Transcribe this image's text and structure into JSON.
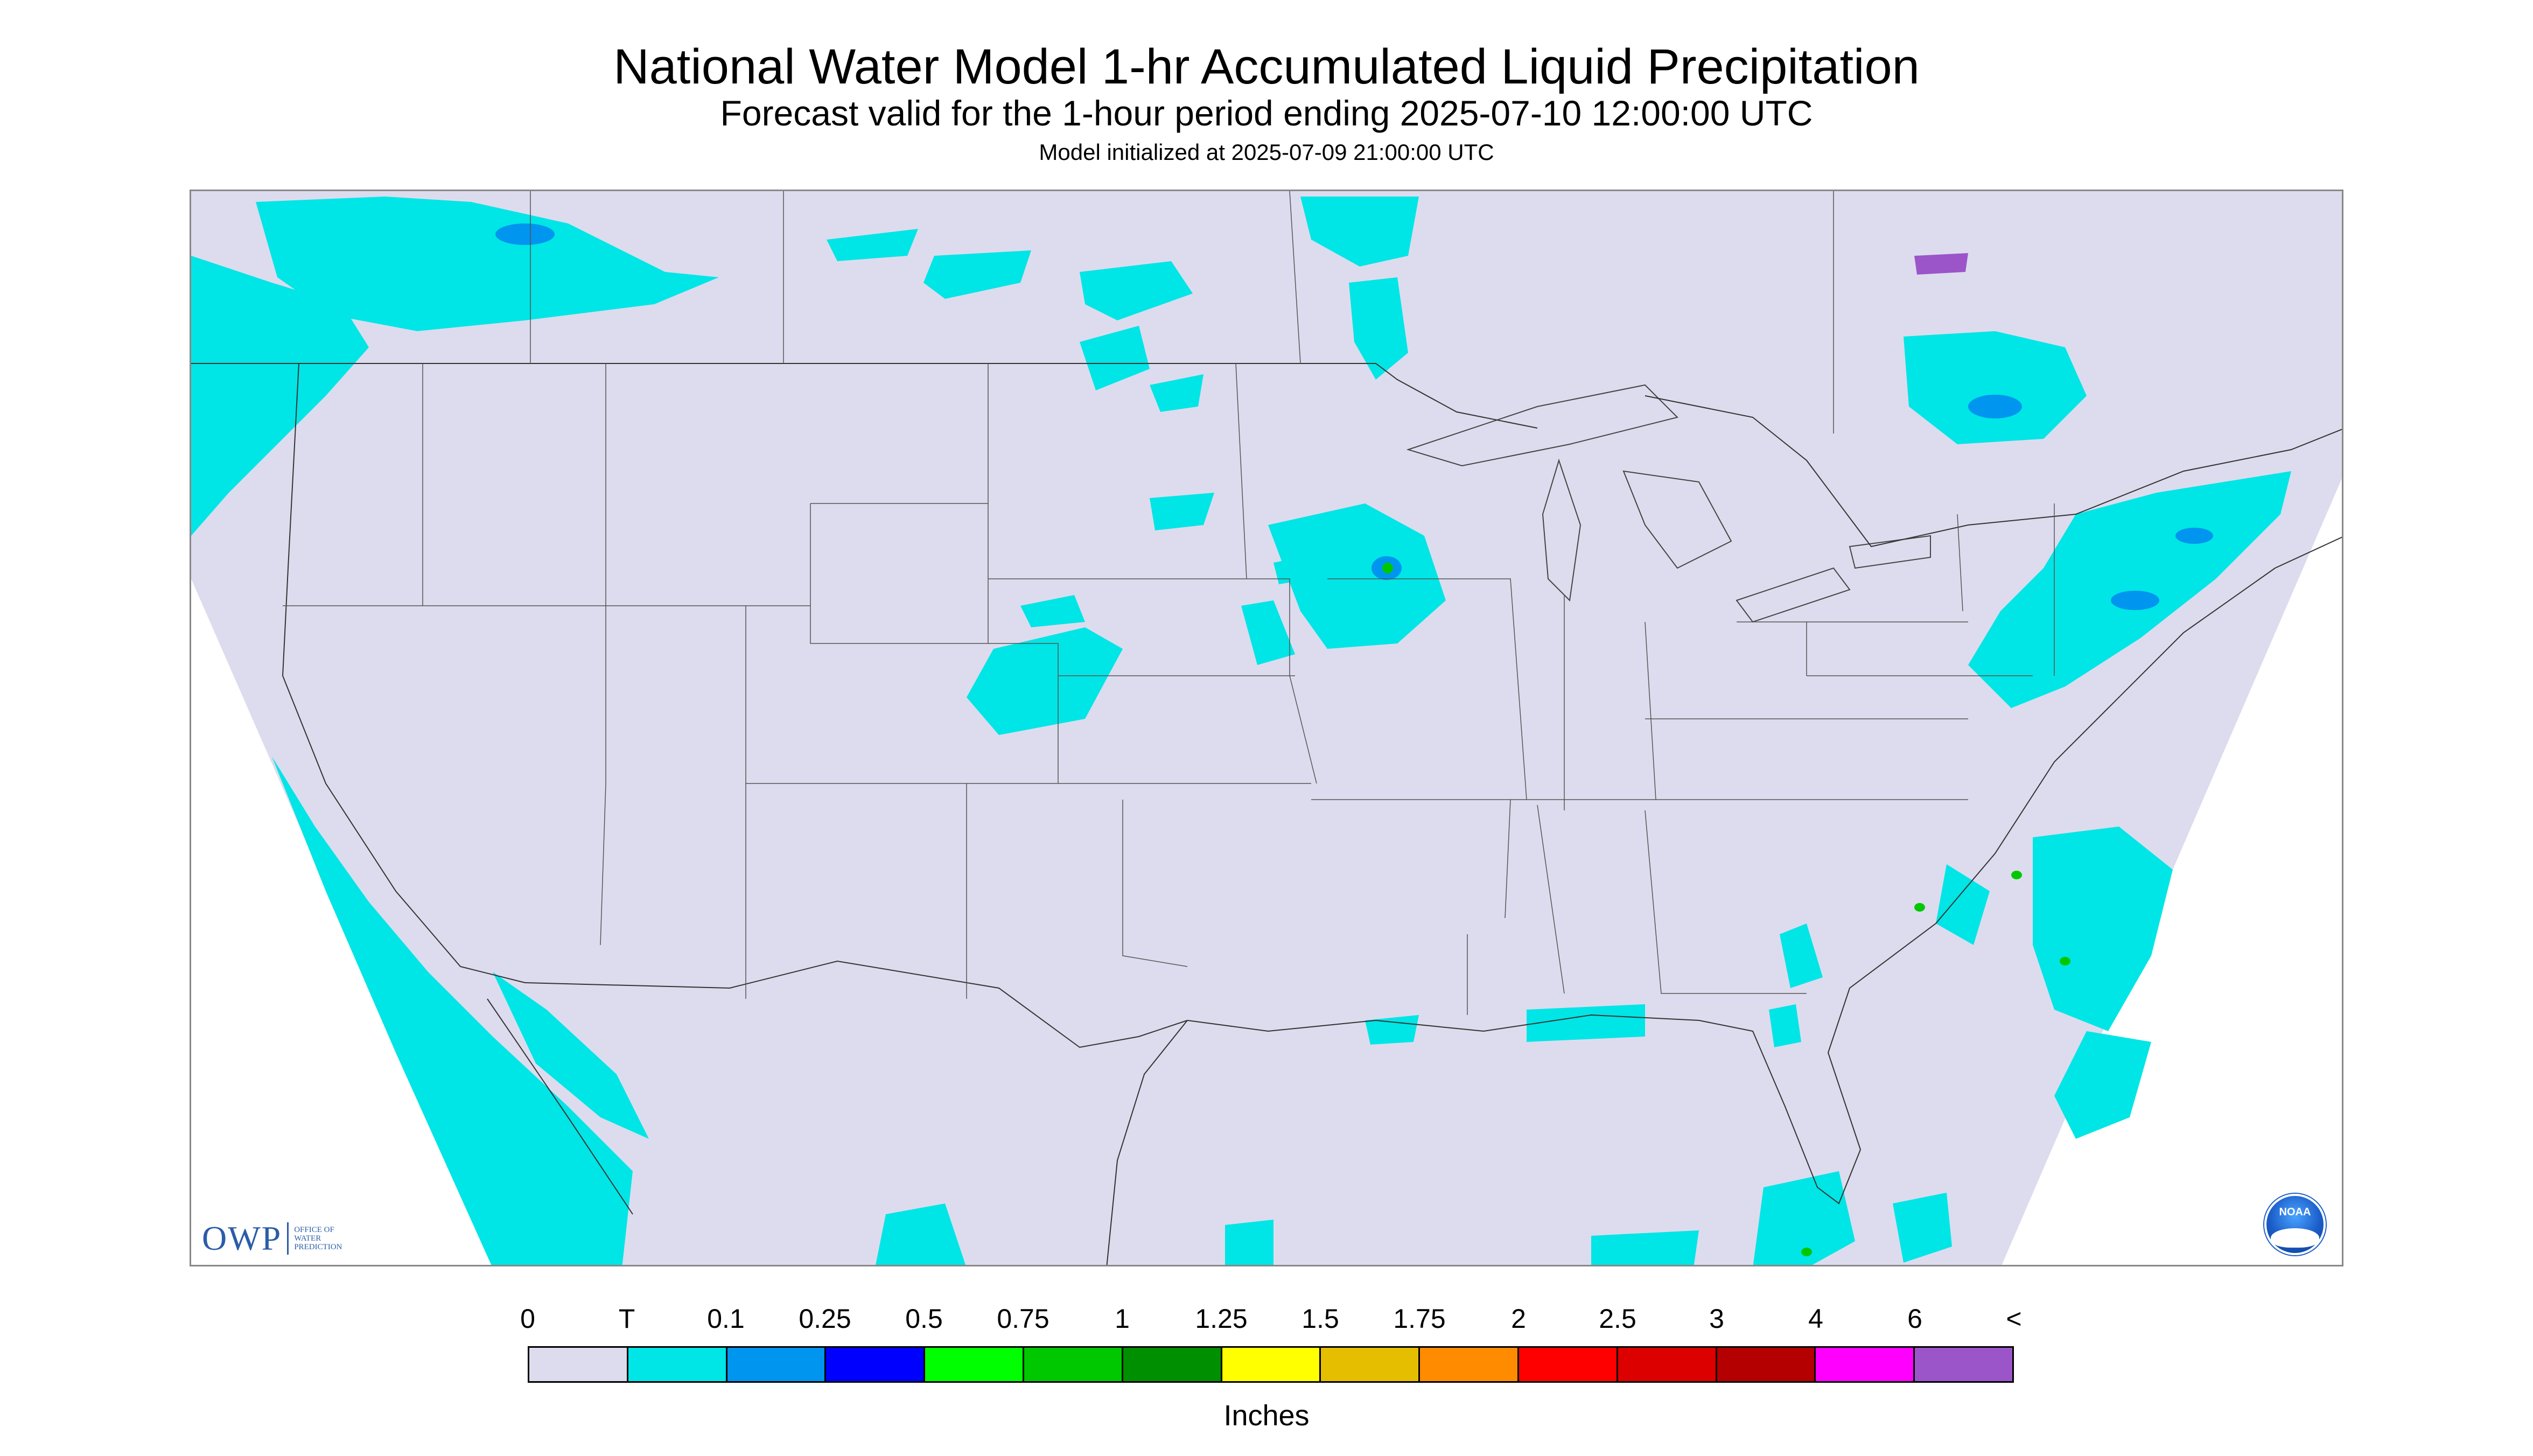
{
  "header": {
    "title": "National Water Model 1-hr Accumulated Liquid Precipitation",
    "subtitle": "Forecast valid for the 1-hour period ending 2025-07-10 12:00:00 UTC",
    "init_note": "Model initialized at 2025-07-09 21:00:00 UTC"
  },
  "map": {
    "background_color": "#dcdcee",
    "precip_light_color": "#00e5e5",
    "precip_blue_color": "#0095ef",
    "precip_green_color": "#00c800"
  },
  "logos": {
    "owp_mark": "OWP",
    "owp_text_line1": "OFFICE OF",
    "owp_text_line2": "WATER",
    "owp_text_line3": "PREDICTION",
    "noaa_text": "NOAA"
  },
  "legend": {
    "labels": [
      "0",
      "T",
      "0.1",
      "0.25",
      "0.5",
      "0.75",
      "1",
      "1.25",
      "1.5",
      "1.75",
      "2",
      "2.5",
      "3",
      "4",
      "6",
      "<"
    ],
    "colors": [
      "#dcdcee",
      "#00e5e5",
      "#0095ef",
      "#0000ff",
      "#00ff00",
      "#00c800",
      "#008f00",
      "#ffff00",
      "#e6be00",
      "#ff8c00",
      "#ff0000",
      "#dc0000",
      "#b40000",
      "#ff00ff",
      "#9b55c8"
    ],
    "units": "Inches"
  }
}
